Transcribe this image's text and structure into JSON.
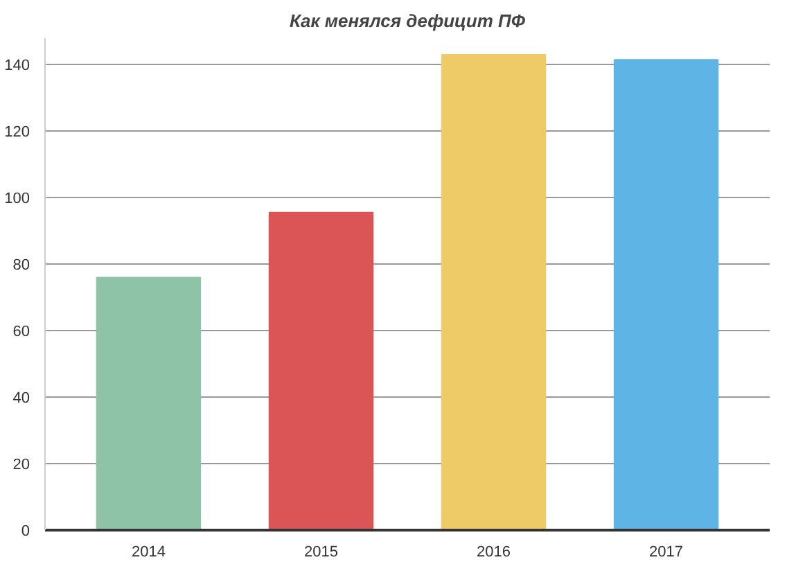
{
  "chart_data": {
    "type": "bar",
    "title": "Как менялся дефицит ПФ",
    "categories": [
      "2014",
      "2015",
      "2016",
      "2017"
    ],
    "values": [
      76,
      95.5,
      143,
      141.5
    ],
    "colors": [
      "#8fc3a7",
      "#db5456",
      "#efcb68",
      "#5eb4e4"
    ],
    "ylim": [
      0,
      148
    ],
    "yticks": [
      0,
      20,
      40,
      60,
      80,
      100,
      120,
      140
    ],
    "grid": "y"
  }
}
